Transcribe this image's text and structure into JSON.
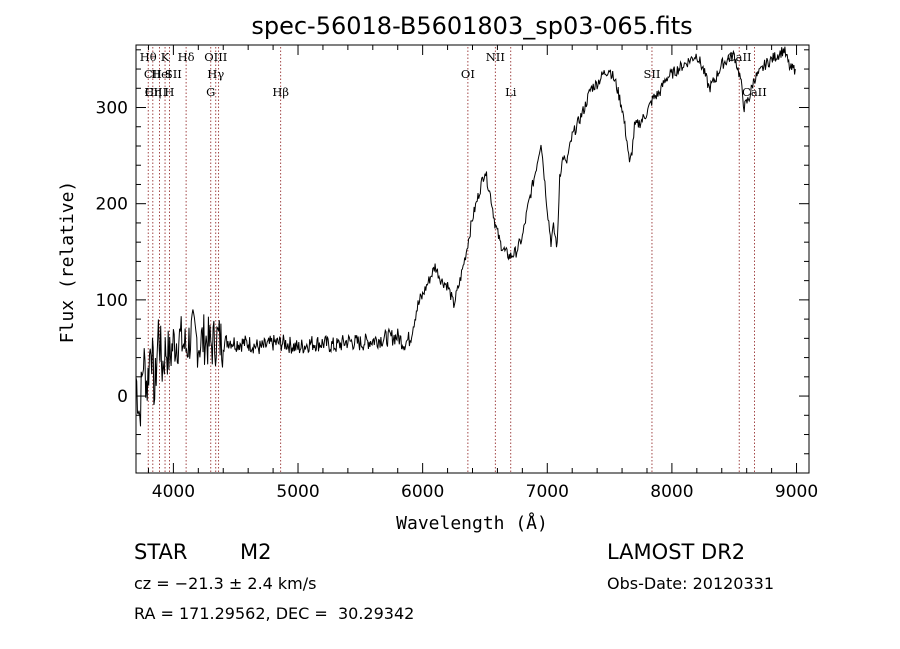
{
  "chart_data": {
    "type": "line",
    "title": "spec-56018-B5601803_sp03-065.fits",
    "xlabel": "Wavelength (Å)",
    "ylabel": "Flux (relative)",
    "xlim": [
      3700,
      9100
    ],
    "ylim": [
      -80,
      365
    ],
    "xticks": [
      4000,
      5000,
      6000,
      7000,
      8000,
      9000
    ],
    "yticks": [
      0,
      100,
      200,
      300
    ],
    "grid": false,
    "legend": "none",
    "line_color": "#000000",
    "marker_color": "#8b1a1a",
    "series": [
      {
        "x": [
          3700,
          3730,
          3760,
          3790,
          3820,
          3850,
          3880,
          3910,
          3940,
          3970,
          4000,
          4050,
          4100,
          4150,
          4200,
          4250,
          4300,
          4350,
          4400,
          4450,
          4500,
          4600,
          4700,
          4800,
          4900,
          5000,
          5100,
          5200,
          5300,
          5400,
          5500,
          5600,
          5700,
          5800,
          5850,
          5900,
          5950,
          6000,
          6050,
          6100,
          6150,
          6200,
          6250,
          6300,
          6350,
          6400,
          6450,
          6500,
          6550,
          6580,
          6620,
          6660,
          6700,
          6750,
          6800,
          6850,
          6900,
          6950,
          7000,
          7030,
          7050,
          7080,
          7100,
          7130,
          7150,
          7200,
          7250,
          7300,
          7350,
          7400,
          7450,
          7500,
          7550,
          7600,
          7640,
          7660,
          7680,
          7700,
          7750,
          7800,
          7850,
          7900,
          7950,
          8000,
          8050,
          8100,
          8150,
          8200,
          8250,
          8300,
          8350,
          8400,
          8450,
          8500,
          8550,
          8580,
          8620,
          8660,
          8700,
          8750,
          8800,
          8850,
          8900,
          8950,
          8990
        ],
        "y": [
          20,
          -20,
          40,
          10,
          60,
          0,
          70,
          30,
          50,
          40,
          55,
          60,
          50,
          65,
          55,
          60,
          52,
          60,
          55,
          58,
          55,
          55,
          50,
          55,
          55,
          50,
          55,
          55,
          52,
          57,
          55,
          58,
          60,
          62,
          55,
          60,
          90,
          105,
          120,
          135,
          120,
          115,
          95,
          120,
          150,
          185,
          210,
          235,
          205,
          180,
          160,
          150,
          145,
          150,
          165,
          200,
          230,
          265,
          195,
          160,
          175,
          155,
          230,
          250,
          240,
          270,
          285,
          300,
          320,
          325,
          335,
          340,
          325,
          300,
          265,
          240,
          255,
          280,
          285,
          295,
          310,
          315,
          330,
          335,
          340,
          345,
          350,
          355,
          340,
          320,
          330,
          345,
          350,
          355,
          330,
          300,
          310,
          330,
          335,
          345,
          350,
          355,
          360,
          340,
          340
        ]
      }
    ],
    "line_markers": [
      {
        "label": "Hθ",
        "x": 3798,
        "row": 1
      },
      {
        "label": "CII",
        "x": 3835,
        "row": 2
      },
      {
        "label": "CIII",
        "x": 3860,
        "row": 3
      },
      {
        "label": "He",
        "x": 3889,
        "row": 2
      },
      {
        "label": "Hη",
        "x": 3835,
        "row": 3
      },
      {
        "label": "K",
        "x": 3933,
        "row": 1
      },
      {
        "label": "H",
        "x": 3968,
        "row": 3
      },
      {
        "label": "I",
        "x": 3967,
        "row": 2
      },
      {
        "label": "SII",
        "x": 4000,
        "row": 2
      },
      {
        "label": "Hδ",
        "x": 4102,
        "row": 1
      },
      {
        "label": "G",
        "x": 4300,
        "row": 3
      },
      {
        "label": "OIII",
        "x": 4340,
        "row": 1
      },
      {
        "label": "Hγ",
        "x": 4340,
        "row": 2
      },
      {
        "label": "Hβ",
        "x": 4861,
        "row": 3
      },
      {
        "label": "OI",
        "x": 6363,
        "row": 2
      },
      {
        "label": "NII",
        "x": 6583,
        "row": 1
      },
      {
        "label": "Li",
        "x": 6707,
        "row": 3
      },
      {
        "label": "SII",
        "x": 7840,
        "row": 2
      },
      {
        "label": "CaII",
        "x": 8540,
        "row": 1
      },
      {
        "label": "CaII",
        "x": 8662,
        "row": 3
      }
    ],
    "marker_lines_x": [
      3798,
      3835,
      3889,
      3933,
      3968,
      4102,
      4300,
      4340,
      4363,
      4861,
      6363,
      6583,
      6707,
      7840,
      8540,
      8662
    ]
  },
  "info": {
    "object_type": "STAR",
    "subclass": "M2",
    "survey": "LAMOST DR2",
    "cz": "cz = −21.3 ± 2.4 km/s",
    "obs_date": "Obs-Date: 20120331",
    "radec": "RA = 171.29562, DEC =  30.29342"
  }
}
